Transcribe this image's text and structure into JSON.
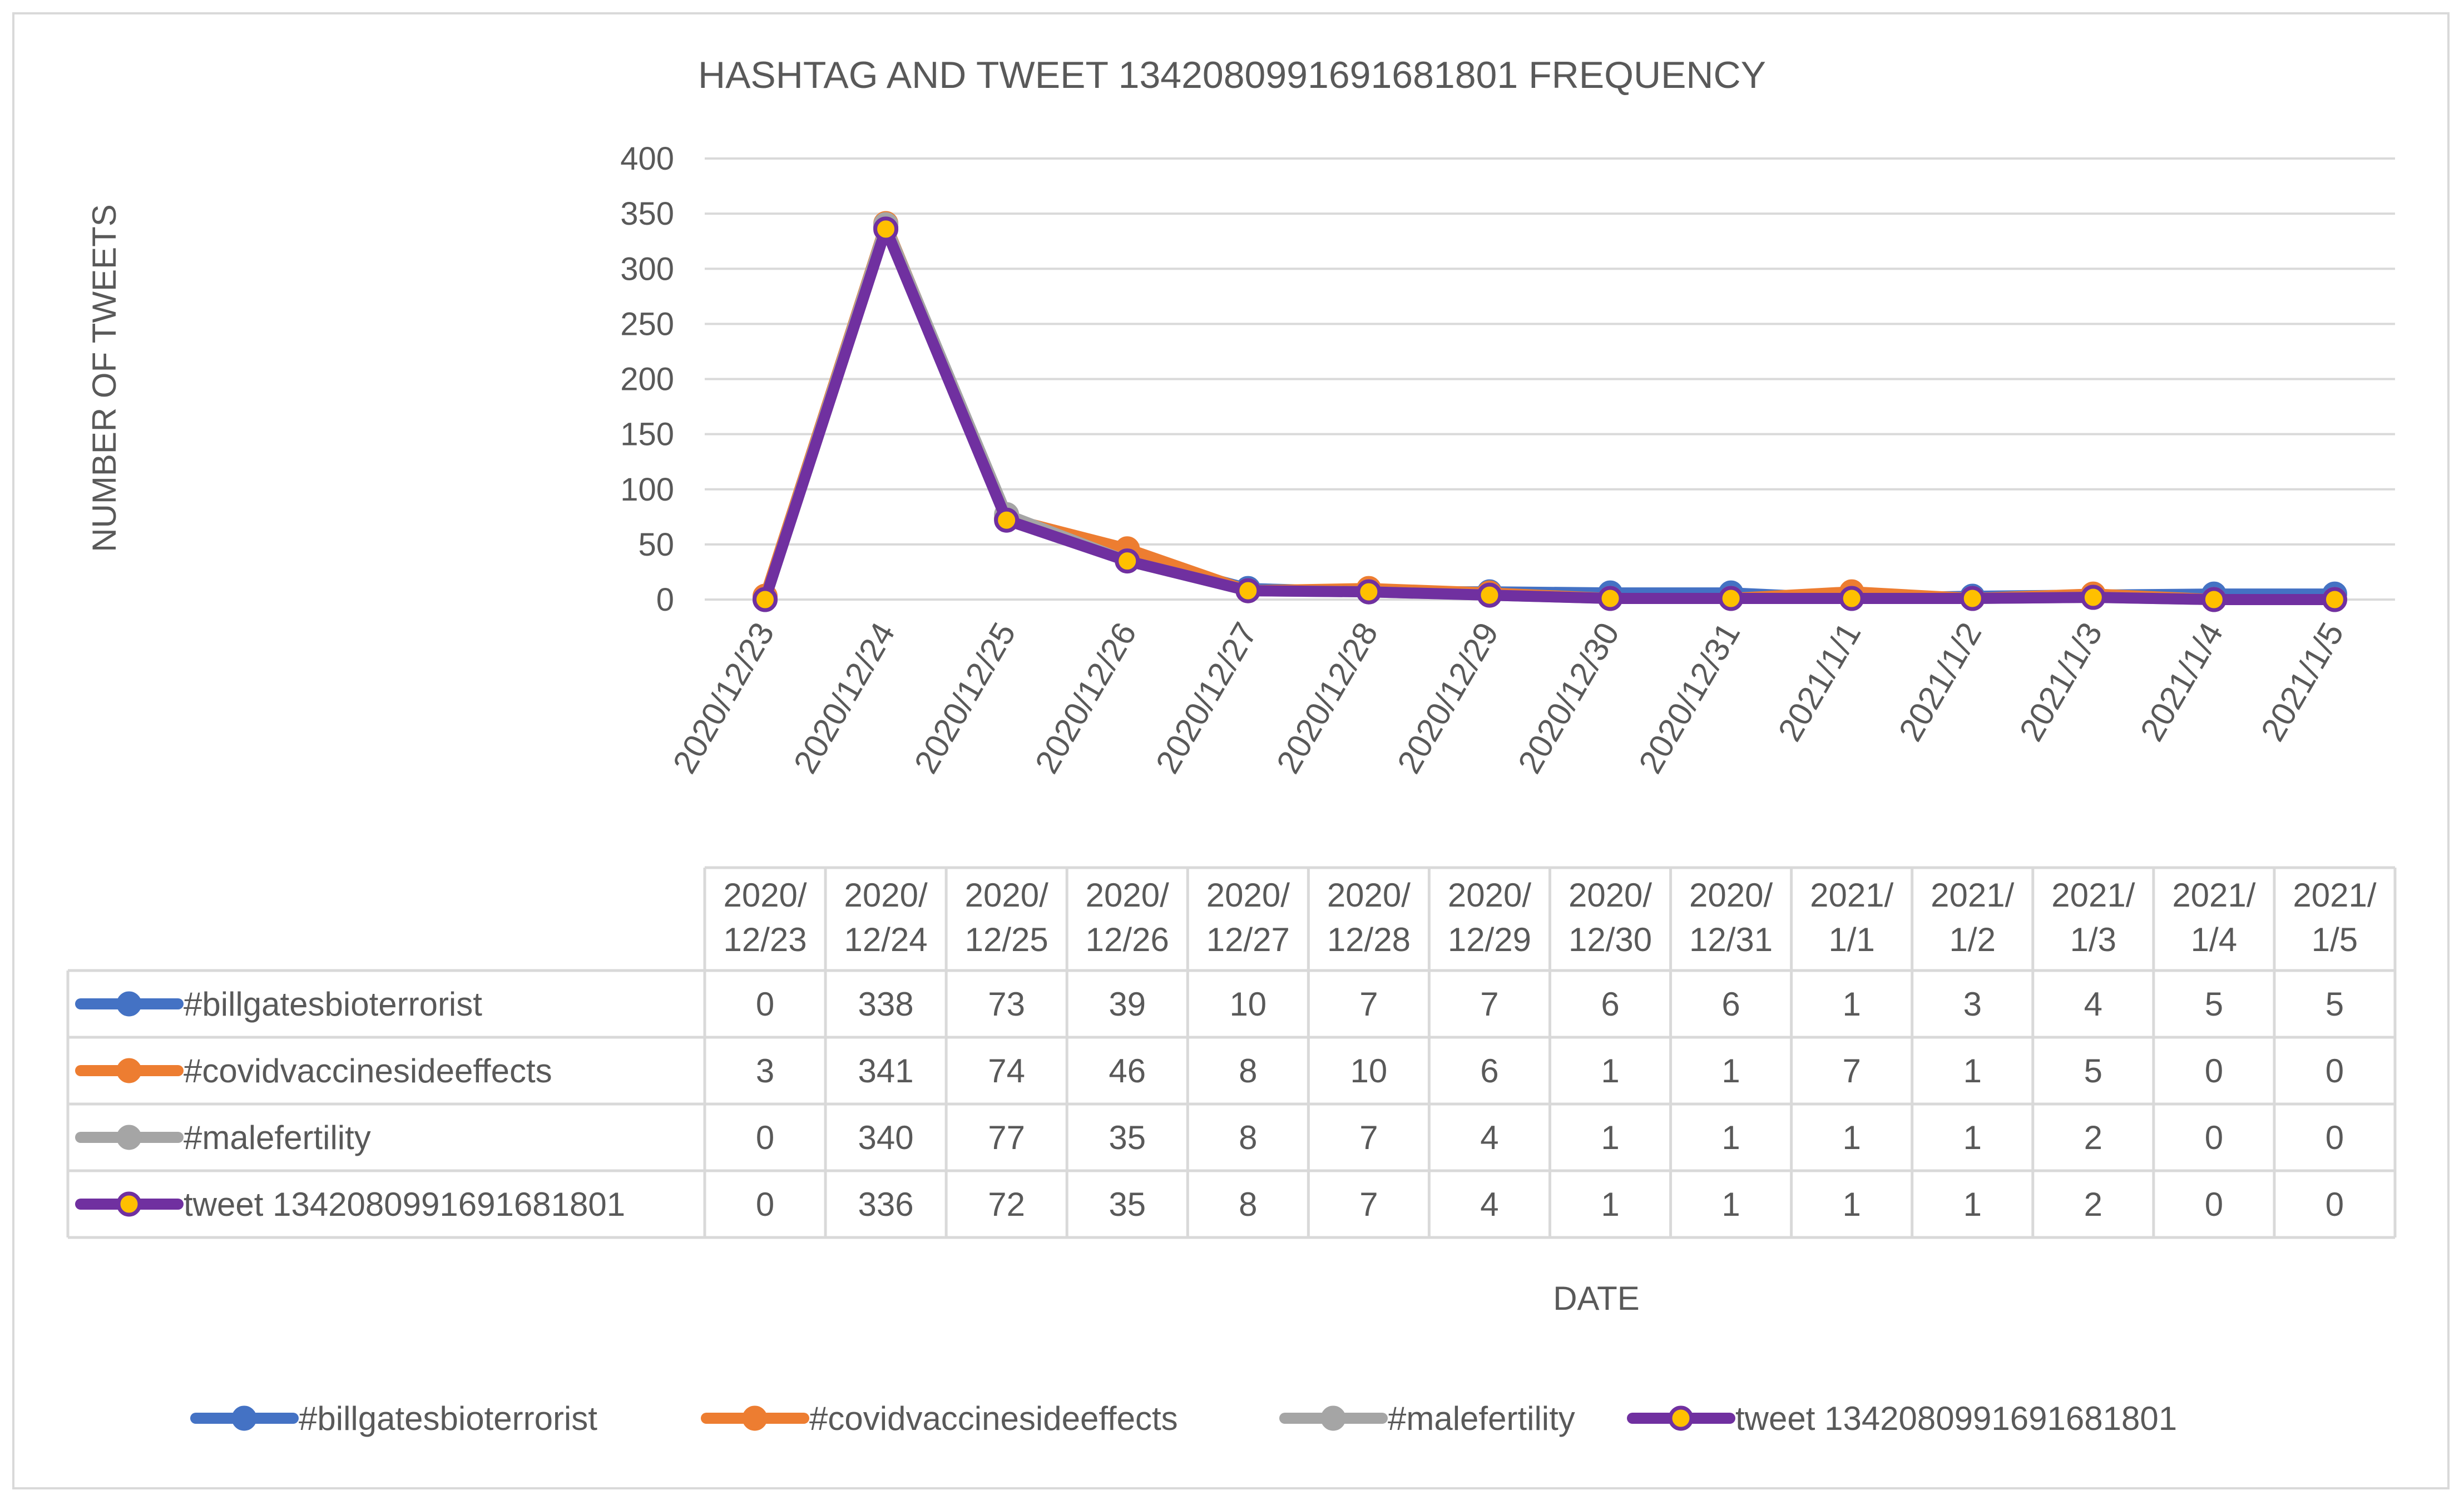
{
  "chart_data": {
    "type": "line",
    "title": "HASHTAG AND TWEET 1342080991691681801 FREQUENCY",
    "xlabel": "DATE",
    "ylabel": "NUMBER OF TWEETS",
    "ylim": [
      0,
      400
    ],
    "yticks": [
      0,
      50,
      100,
      150,
      200,
      250,
      300,
      350,
      400
    ],
    "grid": true,
    "legend_position": "bottom",
    "data_table": true,
    "categories": [
      "2020/12/23",
      "2020/12/24",
      "2020/12/25",
      "2020/12/26",
      "2020/12/27",
      "2020/12/28",
      "2020/12/29",
      "2020/12/30",
      "2020/12/31",
      "2021/1/1",
      "2021/1/2",
      "2021/1/3",
      "2021/1/4",
      "2021/1/5"
    ],
    "table_headers": [
      [
        "2020/",
        "12/23"
      ],
      [
        "2020/",
        "12/24"
      ],
      [
        "2020/",
        "12/25"
      ],
      [
        "2020/",
        "12/26"
      ],
      [
        "2020/",
        "12/27"
      ],
      [
        "2020/",
        "12/28"
      ],
      [
        "2020/",
        "12/29"
      ],
      [
        "2020/",
        "12/30"
      ],
      [
        "2020/",
        "12/31"
      ],
      [
        "2021/",
        "1/1"
      ],
      [
        "2021/",
        "1/2"
      ],
      [
        "2021/",
        "1/3"
      ],
      [
        "2021/",
        "1/4"
      ],
      [
        "2021/",
        "1/5"
      ]
    ],
    "series": [
      {
        "name": "#billgatesbioterrorist",
        "color": "#4472c4",
        "marker_fill": "#4472c4",
        "values": [
          0,
          338,
          73,
          39,
          10,
          7,
          7,
          6,
          6,
          1,
          3,
          4,
          5,
          5
        ]
      },
      {
        "name": "#covidvaccinesideeffects",
        "color": "#ed7d31",
        "marker_fill": "#ed7d31",
        "values": [
          3,
          341,
          74,
          46,
          8,
          10,
          6,
          1,
          1,
          7,
          1,
          5,
          0,
          0
        ]
      },
      {
        "name": "#malefertility",
        "color": "#a5a5a5",
        "marker_fill": "#a5a5a5",
        "values": [
          0,
          340,
          77,
          35,
          8,
          7,
          4,
          1,
          1,
          1,
          1,
          2,
          0,
          0
        ]
      },
      {
        "name": "tweet 1342080991691681801",
        "color": "#7030a0",
        "marker_fill": "#ffc000",
        "values": [
          0,
          336,
          72,
          35,
          8,
          7,
          4,
          1,
          1,
          1,
          1,
          2,
          0,
          0
        ]
      }
    ]
  }
}
